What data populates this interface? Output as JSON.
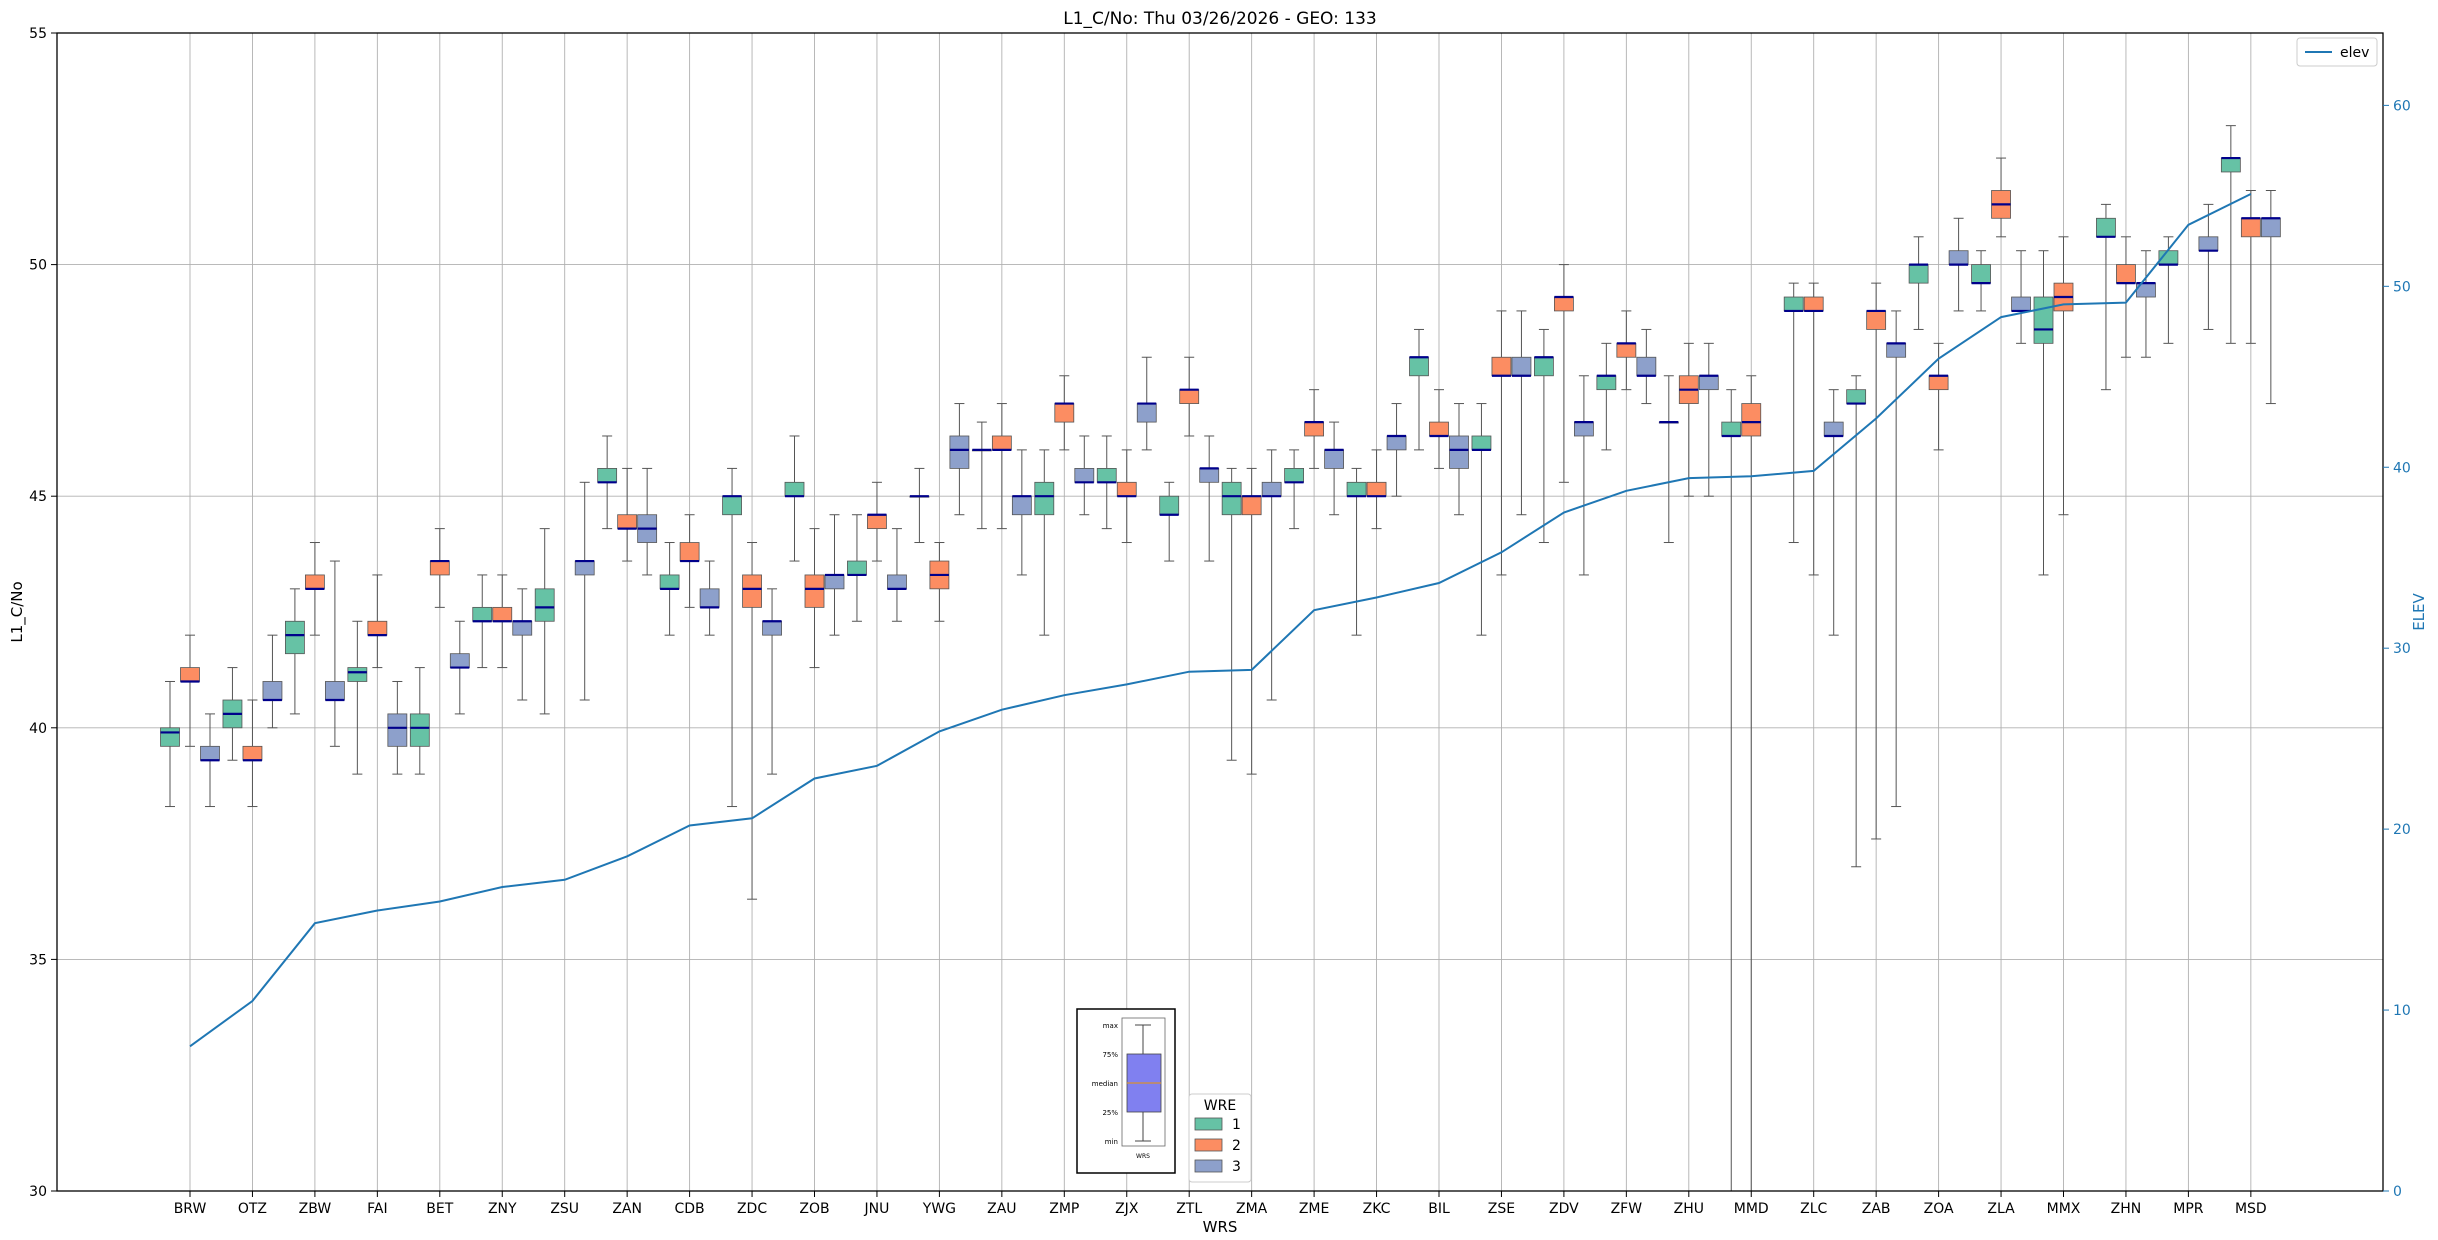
{
  "chart_data": {
    "type": "box",
    "title": "L1_C/No: Thu 03/26/2026 - GEO: 133",
    "xlabel": "WRS",
    "ylabel": "L1_C/No",
    "y2label": "ELEV",
    "ylim": [
      30,
      55
    ],
    "y2lim": [
      0,
      64
    ],
    "yticks": [
      30,
      35,
      40,
      45,
      50,
      55
    ],
    "y2ticks": [
      0,
      10,
      20,
      30,
      40,
      50,
      60
    ],
    "grid": true,
    "categories": [
      "BRW",
      "OTZ",
      "ZBW",
      "FAI",
      "BET",
      "ZNY",
      "ZSU",
      "ZAN",
      "CDB",
      "ZDC",
      "ZOB",
      "JNU",
      "YWG",
      "ZAU",
      "ZMP",
      "ZJX",
      "ZTL",
      "ZMA",
      "ZME",
      "ZKC",
      "BIL",
      "ZSE",
      "ZDV",
      "ZFW",
      "ZHU",
      "MMD",
      "ZLC",
      "ZAB",
      "ZOA",
      "ZLA",
      "MMX",
      "ZHN",
      "MPR",
      "MSD"
    ],
    "colors": {
      "wre1": "#66c2a5",
      "wre2": "#fc8d62",
      "wre3": "#8da0cb",
      "median": "#00008b",
      "elev_line": "#1f77b4",
      "grid": "#b0b0b0"
    },
    "elev": {
      "name": "elev",
      "values": [
        8.0,
        10.5,
        14.8,
        15.5,
        16.0,
        16.8,
        17.2,
        18.5,
        20.2,
        20.6,
        22.8,
        23.5,
        25.4,
        26.6,
        27.4,
        28.0,
        28.7,
        28.8,
        32.1,
        32.8,
        33.6,
        35.3,
        37.5,
        38.7,
        39.4,
        39.5,
        39.8,
        42.7,
        46.0,
        48.3,
        49.0,
        49.1,
        53.4,
        55.1
      ]
    },
    "series": [
      {
        "name": "1",
        "boxes": [
          {
            "cat": "BRW",
            "min": 38.3,
            "q1": 39.6,
            "med": 39.9,
            "q3": 40.0,
            "max": 41.0
          },
          {
            "cat": "OTZ",
            "min": 39.3,
            "q1": 40.0,
            "med": 40.3,
            "q3": 40.6,
            "max": 41.3
          },
          {
            "cat": "ZBW",
            "min": 40.3,
            "q1": 41.6,
            "med": 42.0,
            "q3": 42.3,
            "max": 43.0
          },
          {
            "cat": "FAI",
            "min": 39.0,
            "q1": 41.0,
            "med": 41.2,
            "q3": 41.3,
            "max": 42.3
          },
          {
            "cat": "BET",
            "min": 39.0,
            "q1": 39.6,
            "med": 40.0,
            "q3": 40.3,
            "max": 41.3
          },
          {
            "cat": "ZNY",
            "min": 41.3,
            "q1": 42.3,
            "med": 42.3,
            "q3": 42.6,
            "max": 43.3
          },
          {
            "cat": "ZSU",
            "min": 40.3,
            "q1": 42.3,
            "med": 42.6,
            "q3": 43.0,
            "max": 44.3
          },
          {
            "cat": "ZAN",
            "min": 44.3,
            "q1": 45.3,
            "med": 45.3,
            "q3": 45.6,
            "max": 46.3
          },
          {
            "cat": "CDB",
            "min": 42.0,
            "q1": 43.0,
            "med": 43.0,
            "q3": 43.3,
            "max": 44.0
          },
          {
            "cat": "ZDC",
            "min": 38.3,
            "q1": 44.6,
            "med": 45.0,
            "q3": 45.0,
            "max": 45.6
          },
          {
            "cat": "ZOB",
            "min": 43.6,
            "q1": 45.0,
            "med": 45.0,
            "q3": 45.3,
            "max": 46.3
          },
          {
            "cat": "JNU",
            "min": 42.3,
            "q1": 43.3,
            "med": 43.3,
            "q3": 43.6,
            "max": 44.6
          },
          {
            "cat": "YWG",
            "min": 44.0,
            "q1": 45.0,
            "med": 45.0,
            "q3": 45.0,
            "max": 45.6
          },
          {
            "cat": "ZAU",
            "min": 44.3,
            "q1": 46.0,
            "med": 46.0,
            "q3": 46.0,
            "max": 46.6
          },
          {
            "cat": "ZMP",
            "min": 42.0,
            "q1": 44.6,
            "med": 45.0,
            "q3": 45.3,
            "max": 46.0
          },
          {
            "cat": "ZJX",
            "min": 44.3,
            "q1": 45.3,
            "med": 45.3,
            "q3": 45.6,
            "max": 46.3
          },
          {
            "cat": "ZTL",
            "min": 43.6,
            "q1": 44.6,
            "med": 44.6,
            "q3": 45.0,
            "max": 45.3
          },
          {
            "cat": "ZMA",
            "min": 39.3,
            "q1": 44.6,
            "med": 45.0,
            "q3": 45.3,
            "max": 45.6
          },
          {
            "cat": "ZME",
            "min": 44.3,
            "q1": 45.3,
            "med": 45.3,
            "q3": 45.6,
            "max": 46.0
          },
          {
            "cat": "ZKC",
            "min": 42.0,
            "q1": 45.0,
            "med": 45.0,
            "q3": 45.3,
            "max": 45.6
          },
          {
            "cat": "BIL",
            "min": 46.0,
            "q1": 47.6,
            "med": 48.0,
            "q3": 48.0,
            "max": 48.6
          },
          {
            "cat": "ZSE",
            "min": 42.0,
            "q1": 46.0,
            "med": 46.0,
            "q3": 46.3,
            "max": 47.0
          },
          {
            "cat": "ZDV",
            "min": 44.0,
            "q1": 47.6,
            "med": 48.0,
            "q3": 48.0,
            "max": 48.6
          },
          {
            "cat": "ZFW",
            "min": 46.0,
            "q1": 47.3,
            "med": 47.6,
            "q3": 47.6,
            "max": 48.3
          },
          {
            "cat": "ZHU",
            "min": 44.0,
            "q1": 46.6,
            "med": 46.6,
            "q3": 46.6,
            "max": 47.6
          },
          {
            "cat": "MMD",
            "min": 30.0,
            "q1": 46.3,
            "med": 46.3,
            "q3": 46.6,
            "max": 47.3
          },
          {
            "cat": "ZLC",
            "min": 44.0,
            "q1": 49.0,
            "med": 49.0,
            "q3": 49.3,
            "max": 49.6
          },
          {
            "cat": "ZAB",
            "min": 37.0,
            "q1": 47.0,
            "med": 47.0,
            "q3": 47.3,
            "max": 47.6
          },
          {
            "cat": "ZOA",
            "min": 48.6,
            "q1": 49.6,
            "med": 50.0,
            "q3": 50.0,
            "max": 50.6
          },
          {
            "cat": "ZLA",
            "min": 49.0,
            "q1": 49.6,
            "med": 49.6,
            "q3": 50.0,
            "max": 50.3
          },
          {
            "cat": "MMX",
            "min": 43.3,
            "q1": 48.3,
            "med": 48.6,
            "q3": 49.3,
            "max": 50.3
          },
          {
            "cat": "ZHN",
            "min": 47.3,
            "q1": 50.6,
            "med": 50.6,
            "q3": 51.0,
            "max": 51.3
          },
          {
            "cat": "MPR",
            "min": 48.3,
            "q1": 50.0,
            "med": 50.0,
            "q3": 50.3,
            "max": 50.6
          },
          {
            "cat": "MSD",
            "min": 48.3,
            "q1": 52.0,
            "med": 52.3,
            "q3": 52.3,
            "max": 53.0
          }
        ]
      },
      {
        "name": "2",
        "boxes": [
          {
            "cat": "BRW",
            "min": 39.6,
            "q1": 41.0,
            "med": 41.0,
            "q3": 41.3,
            "max": 42.0
          },
          {
            "cat": "OTZ",
            "min": 38.3,
            "q1": 39.3,
            "med": 39.3,
            "q3": 39.6,
            "max": 40.6
          },
          {
            "cat": "ZBW",
            "min": 42.0,
            "q1": 43.0,
            "med": 43.0,
            "q3": 43.3,
            "max": 44.0
          },
          {
            "cat": "FAI",
            "min": 41.3,
            "q1": 42.0,
            "med": 42.0,
            "q3": 42.3,
            "max": 43.3
          },
          {
            "cat": "BET",
            "min": 42.6,
            "q1": 43.3,
            "med": 43.6,
            "q3": 43.6,
            "max": 44.3
          },
          {
            "cat": "ZNY",
            "min": 41.3,
            "q1": 42.3,
            "med": 42.3,
            "q3": 42.6,
            "max": 43.3
          },
          {
            "cat": "ZAN",
            "min": 43.6,
            "q1": 44.3,
            "med": 44.3,
            "q3": 44.6,
            "max": 45.6
          },
          {
            "cat": "CDB",
            "min": 42.6,
            "q1": 43.6,
            "med": 43.6,
            "q3": 44.0,
            "max": 44.6
          },
          {
            "cat": "ZDC",
            "min": 36.3,
            "q1": 42.6,
            "med": 43.0,
            "q3": 43.3,
            "max": 44.0
          },
          {
            "cat": "ZOB",
            "min": 41.3,
            "q1": 42.6,
            "med": 43.0,
            "q3": 43.3,
            "max": 44.3
          },
          {
            "cat": "JNU",
            "min": 43.6,
            "q1": 44.3,
            "med": 44.6,
            "q3": 44.6,
            "max": 45.3
          },
          {
            "cat": "YWG",
            "min": 42.3,
            "q1": 43.0,
            "med": 43.3,
            "q3": 43.6,
            "max": 44.0
          },
          {
            "cat": "ZAU",
            "min": 44.3,
            "q1": 46.0,
            "med": 46.0,
            "q3": 46.3,
            "max": 47.0
          },
          {
            "cat": "ZMP",
            "min": 46.0,
            "q1": 46.6,
            "med": 47.0,
            "q3": 47.0,
            "max": 47.6
          },
          {
            "cat": "ZJX",
            "min": 44.0,
            "q1": 45.0,
            "med": 45.0,
            "q3": 45.3,
            "max": 46.0
          },
          {
            "cat": "ZTL",
            "min": 46.3,
            "q1": 47.0,
            "med": 47.3,
            "q3": 47.3,
            "max": 48.0
          },
          {
            "cat": "ZMA",
            "min": 39.0,
            "q1": 44.6,
            "med": 45.0,
            "q3": 45.0,
            "max": 45.6
          },
          {
            "cat": "ZME",
            "min": 45.6,
            "q1": 46.3,
            "med": 46.6,
            "q3": 46.6,
            "max": 47.3
          },
          {
            "cat": "ZKC",
            "min": 44.3,
            "q1": 45.0,
            "med": 45.0,
            "q3": 45.3,
            "max": 46.0
          },
          {
            "cat": "BIL",
            "min": 45.6,
            "q1": 46.3,
            "med": 46.3,
            "q3": 46.6,
            "max": 47.3
          },
          {
            "cat": "ZSE",
            "min": 43.3,
            "q1": 47.6,
            "med": 47.6,
            "q3": 48.0,
            "max": 49.0
          },
          {
            "cat": "ZDV",
            "min": 45.3,
            "q1": 49.0,
            "med": 49.3,
            "q3": 49.3,
            "max": 50.0
          },
          {
            "cat": "ZFW",
            "min": 47.3,
            "q1": 48.0,
            "med": 48.3,
            "q3": 48.3,
            "max": 49.0
          },
          {
            "cat": "ZHU",
            "min": 45.0,
            "q1": 47.0,
            "med": 47.3,
            "q3": 47.6,
            "max": 48.3
          },
          {
            "cat": "MMD",
            "min": 30.0,
            "q1": 46.3,
            "med": 46.6,
            "q3": 47.0,
            "max": 47.6
          },
          {
            "cat": "ZLC",
            "min": 43.3,
            "q1": 49.0,
            "med": 49.0,
            "q3": 49.3,
            "max": 49.6
          },
          {
            "cat": "ZAB",
            "min": 37.6,
            "q1": 48.6,
            "med": 49.0,
            "q3": 49.0,
            "max": 49.6
          },
          {
            "cat": "ZOA",
            "min": 46.0,
            "q1": 47.3,
            "med": 47.6,
            "q3": 47.6,
            "max": 48.3
          },
          {
            "cat": "ZLA",
            "min": 50.6,
            "q1": 51.0,
            "med": 51.3,
            "q3": 51.6,
            "max": 52.3
          },
          {
            "cat": "MMX",
            "min": 44.6,
            "q1": 49.0,
            "med": 49.3,
            "q3": 49.6,
            "max": 50.6
          },
          {
            "cat": "ZHN",
            "min": 48.0,
            "q1": 49.6,
            "med": 49.6,
            "q3": 50.0,
            "max": 50.6
          },
          {
            "cat": "MSD",
            "min": 48.3,
            "q1": 50.6,
            "med": 51.0,
            "q3": 51.0,
            "max": 51.6
          }
        ]
      },
      {
        "name": "3",
        "boxes": [
          {
            "cat": "BRW",
            "min": 38.3,
            "q1": 39.3,
            "med": 39.3,
            "q3": 39.6,
            "max": 40.3
          },
          {
            "cat": "OTZ",
            "min": 40.0,
            "q1": 40.6,
            "med": 40.6,
            "q3": 41.0,
            "max": 42.0
          },
          {
            "cat": "ZBW",
            "min": 39.6,
            "q1": 40.6,
            "med": 40.6,
            "q3": 41.0,
            "max": 43.6
          },
          {
            "cat": "FAI",
            "min": 39.0,
            "q1": 39.6,
            "med": 40.0,
            "q3": 40.3,
            "max": 41.0
          },
          {
            "cat": "BET",
            "min": 40.3,
            "q1": 41.3,
            "med": 41.3,
            "q3": 41.6,
            "max": 42.3
          },
          {
            "cat": "ZNY",
            "min": 40.6,
            "q1": 42.0,
            "med": 42.3,
            "q3": 42.3,
            "max": 43.0
          },
          {
            "cat": "ZSU",
            "min": 40.6,
            "q1": 43.3,
            "med": 43.6,
            "q3": 43.6,
            "max": 45.3
          },
          {
            "cat": "ZAN",
            "min": 43.3,
            "q1": 44.0,
            "med": 44.3,
            "q3": 44.6,
            "max": 45.6
          },
          {
            "cat": "CDB",
            "min": 42.0,
            "q1": 42.6,
            "med": 42.6,
            "q3": 43.0,
            "max": 43.6
          },
          {
            "cat": "ZDC",
            "min": 39.0,
            "q1": 42.0,
            "med": 42.3,
            "q3": 42.3,
            "max": 43.0
          },
          {
            "cat": "ZOB",
            "min": 42.0,
            "q1": 43.0,
            "med": 43.3,
            "q3": 43.3,
            "max": 44.6
          },
          {
            "cat": "JNU",
            "min": 42.3,
            "q1": 43.0,
            "med": 43.0,
            "q3": 43.3,
            "max": 44.3
          },
          {
            "cat": "YWG",
            "min": 44.6,
            "q1": 45.6,
            "med": 46.0,
            "q3": 46.3,
            "max": 47.0
          },
          {
            "cat": "ZAU",
            "min": 43.3,
            "q1": 44.6,
            "med": 45.0,
            "q3": 45.0,
            "max": 46.0
          },
          {
            "cat": "ZMP",
            "min": 44.6,
            "q1": 45.3,
            "med": 45.3,
            "q3": 45.6,
            "max": 46.3
          },
          {
            "cat": "ZJX",
            "min": 46.0,
            "q1": 46.6,
            "med": 47.0,
            "q3": 47.0,
            "max": 48.0
          },
          {
            "cat": "ZTL",
            "min": 43.6,
            "q1": 45.3,
            "med": 45.6,
            "q3": 45.6,
            "max": 46.3
          },
          {
            "cat": "ZMA",
            "min": 40.6,
            "q1": 45.0,
            "med": 45.0,
            "q3": 45.3,
            "max": 46.0
          },
          {
            "cat": "ZME",
            "min": 44.6,
            "q1": 45.6,
            "med": 46.0,
            "q3": 46.0,
            "max": 46.6
          },
          {
            "cat": "ZKC",
            "min": 45.0,
            "q1": 46.0,
            "med": 46.3,
            "q3": 46.3,
            "max": 47.0
          },
          {
            "cat": "BIL",
            "min": 44.6,
            "q1": 45.6,
            "med": 46.0,
            "q3": 46.3,
            "max": 47.0
          },
          {
            "cat": "ZSE",
            "min": 44.6,
            "q1": 47.6,
            "med": 47.6,
            "q3": 48.0,
            "max": 49.0
          },
          {
            "cat": "ZDV",
            "min": 43.3,
            "q1": 46.3,
            "med": 46.6,
            "q3": 46.6,
            "max": 47.6
          },
          {
            "cat": "ZFW",
            "min": 47.0,
            "q1": 47.6,
            "med": 47.6,
            "q3": 48.0,
            "max": 48.6
          },
          {
            "cat": "ZHU",
            "min": 45.0,
            "q1": 47.3,
            "med": 47.6,
            "q3": 47.6,
            "max": 48.3
          },
          {
            "cat": "ZLC",
            "min": 42.0,
            "q1": 46.3,
            "med": 46.3,
            "q3": 46.6,
            "max": 47.3
          },
          {
            "cat": "ZAB",
            "min": 38.3,
            "q1": 48.0,
            "med": 48.3,
            "q3": 48.3,
            "max": 49.0
          },
          {
            "cat": "ZOA",
            "min": 49.0,
            "q1": 50.0,
            "med": 50.0,
            "q3": 50.3,
            "max": 51.0
          },
          {
            "cat": "ZLA",
            "min": 48.3,
            "q1": 49.0,
            "med": 49.0,
            "q3": 49.3,
            "max": 50.3
          },
          {
            "cat": "ZHN",
            "min": 48.0,
            "q1": 49.3,
            "med": 49.6,
            "q3": 49.6,
            "max": 50.3
          },
          {
            "cat": "MPR",
            "min": 48.6,
            "q1": 50.3,
            "med": 50.3,
            "q3": 50.6,
            "max": 51.3
          },
          {
            "cat": "MSD",
            "min": 47.0,
            "q1": 50.6,
            "med": 51.0,
            "q3": 51.0,
            "max": 51.6
          }
        ]
      }
    ],
    "legend_wre": {
      "title": "WRE",
      "entries": [
        "1",
        "2",
        "3"
      ],
      "placement": "bottom-center"
    },
    "legend_elev": {
      "entries": [
        "elev"
      ],
      "placement": "top-right"
    },
    "key_box": {
      "labels": [
        "max",
        "75%",
        "median",
        "25%",
        "min"
      ],
      "xlabel": "WRS",
      "placement": "bottom-center"
    }
  }
}
